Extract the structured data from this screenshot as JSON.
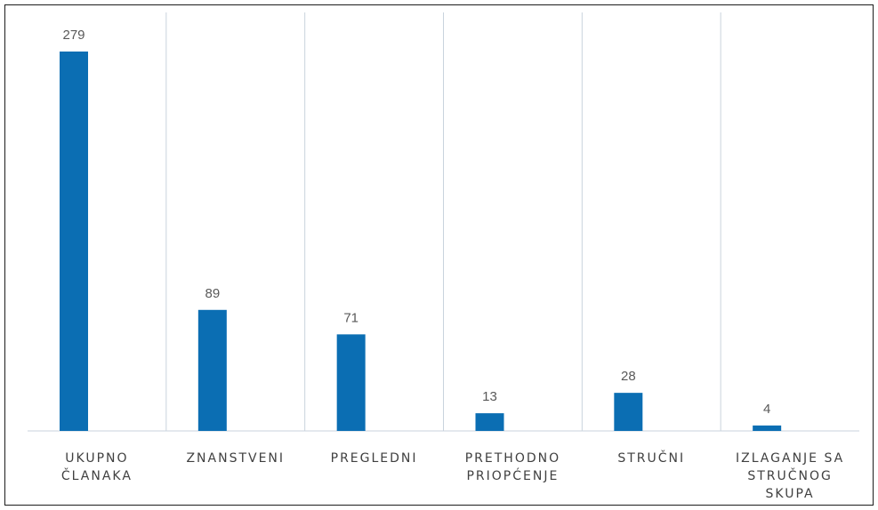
{
  "chart_data": {
    "type": "bar",
    "title": "",
    "xlabel": "",
    "ylabel": "",
    "categories": [
      "UKUPNO ČLANAKA",
      "ZNANSTVENI",
      "PREGLEDNI",
      "PRETHODNO PRIOPĆENJE",
      "STRUČNI",
      "IZLAGANJE SA STRUČNOG SKUPA"
    ],
    "category_lines": [
      [
        "UKUPNO",
        "ČLANAKA"
      ],
      [
        "ZNANSTVENI"
      ],
      [
        "PREGLEDNI"
      ],
      [
        "PRETHODNO",
        "PRIOPĆENJE"
      ],
      [
        "STRUČNI"
      ],
      [
        "IZLAGANJE SA",
        "STRUČNOG",
        "SKUPA"
      ]
    ],
    "values": [
      279,
      89,
      71,
      13,
      28,
      4
    ],
    "ylim": [
      0,
      279
    ],
    "grid": "vertical category separators",
    "legend": "none",
    "data_labels": true,
    "bar_color": "#0b6eb3",
    "gridline_color": "#c9d3dd",
    "axis_color": "#c9d3dd"
  }
}
